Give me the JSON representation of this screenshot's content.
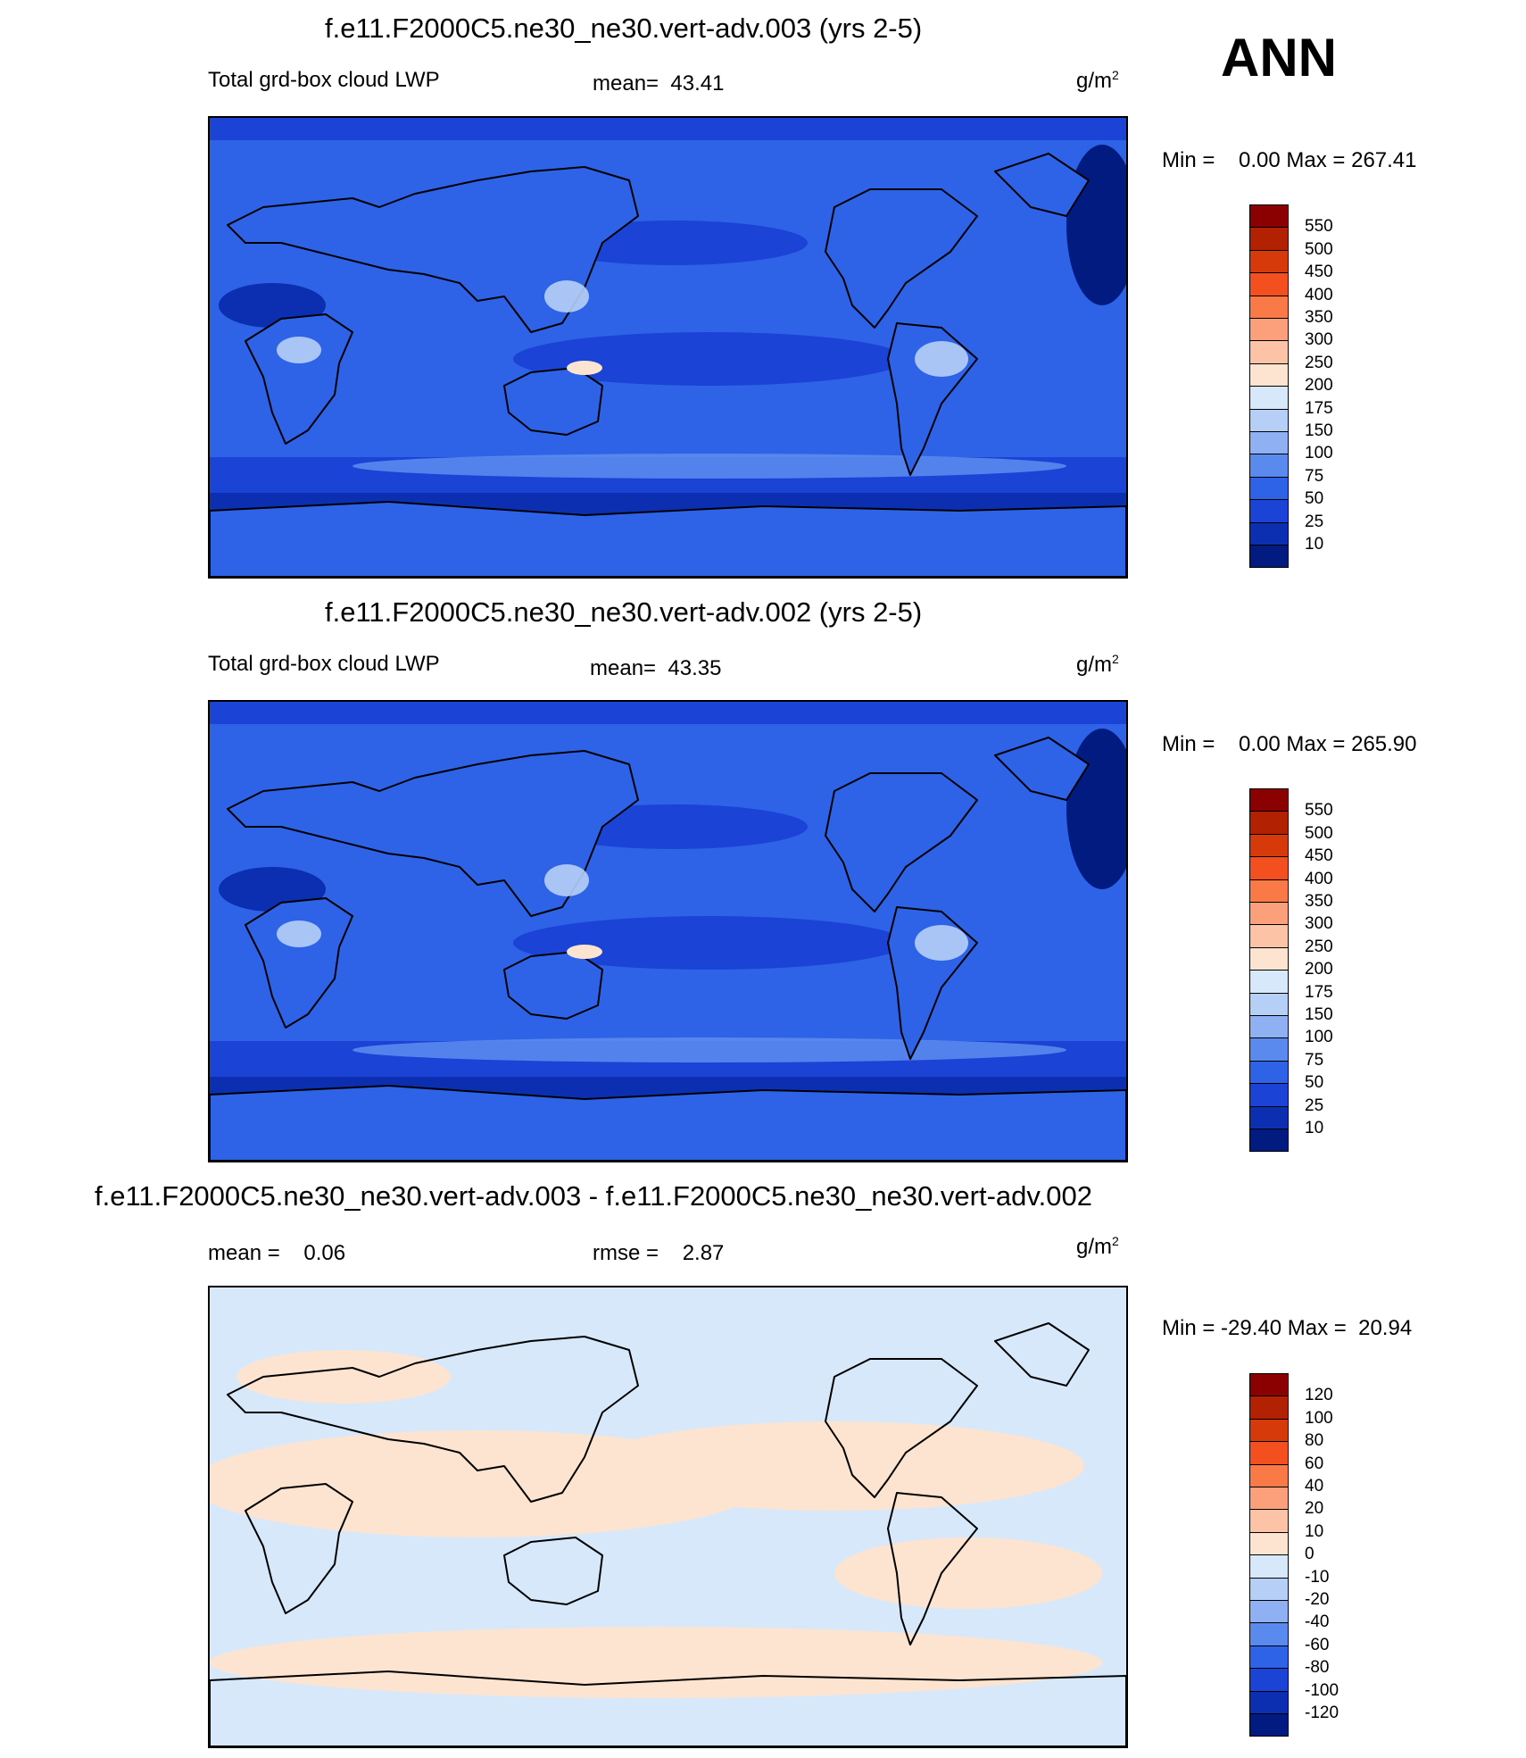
{
  "ann_label": "ANN",
  "panels": [
    {
      "title": "f.e11.F2000C5.ne30_ne30.vert-adv.003 (yrs 2-5)",
      "left_label": "Total grd-box cloud LWP",
      "center_label": "mean=  43.41",
      "units": "g/m",
      "units_sup": "2",
      "minmax": "Min =    0.00 Max = 267.41",
      "colorbar": {
        "ticks": [
          "550",
          "500",
          "450",
          "400",
          "350",
          "300",
          "250",
          "200",
          "175",
          "150",
          "100",
          "75",
          "50",
          "25",
          "10"
        ],
        "colors": [
          "#8b0000",
          "#b22202",
          "#d63a0b",
          "#f4501f",
          "#f97a47",
          "#fba07a",
          "#fcc3a6",
          "#fde4d0",
          "#d8e8fb",
          "#b6cff7",
          "#8fb0f2",
          "#5b8aee",
          "#2e63e8",
          "#1b44d6",
          "#0b2fb0",
          "#021b80"
        ]
      },
      "map": {
        "style": "field"
      }
    },
    {
      "title": "f.e11.F2000C5.ne30_ne30.vert-adv.002 (yrs 2-5)",
      "left_label": "Total grd-box cloud LWP",
      "center_label": "mean=  43.35",
      "units": "g/m",
      "units_sup": "2",
      "minmax": "Min =    0.00 Max = 265.90",
      "colorbar": {
        "ticks": [
          "550",
          "500",
          "450",
          "400",
          "350",
          "300",
          "250",
          "200",
          "175",
          "150",
          "100",
          "75",
          "50",
          "25",
          "10"
        ],
        "colors": [
          "#8b0000",
          "#b22202",
          "#d63a0b",
          "#f4501f",
          "#f97a47",
          "#fba07a",
          "#fcc3a6",
          "#fde4d0",
          "#d8e8fb",
          "#b6cff7",
          "#8fb0f2",
          "#5b8aee",
          "#2e63e8",
          "#1b44d6",
          "#0b2fb0",
          "#021b80"
        ]
      },
      "map": {
        "style": "field"
      }
    },
    {
      "title": "f.e11.F2000C5.ne30_ne30.vert-adv.003 - f.e11.F2000C5.ne30_ne30.vert-adv.002",
      "left_label": "mean =    0.06",
      "center_label": "rmse =    2.87",
      "units": "g/m",
      "units_sup": "2",
      "minmax": "Min = -29.40 Max =  20.94",
      "colorbar": {
        "ticks": [
          "120",
          "100",
          "80",
          "60",
          "40",
          "20",
          "10",
          "0",
          "-10",
          "-20",
          "-40",
          "-60",
          "-80",
          "-100",
          "-120"
        ],
        "colors": [
          "#8b0000",
          "#b22202",
          "#d63a0b",
          "#f4501f",
          "#f97a47",
          "#fba07a",
          "#fcc3a6",
          "#fde4d0",
          "#d8e8fb",
          "#b6cff7",
          "#8fb0f2",
          "#5b8aee",
          "#2e63e8",
          "#1b44d6",
          "#0b2fb0",
          "#021b80"
        ]
      },
      "map": {
        "style": "diff"
      }
    }
  ]
}
